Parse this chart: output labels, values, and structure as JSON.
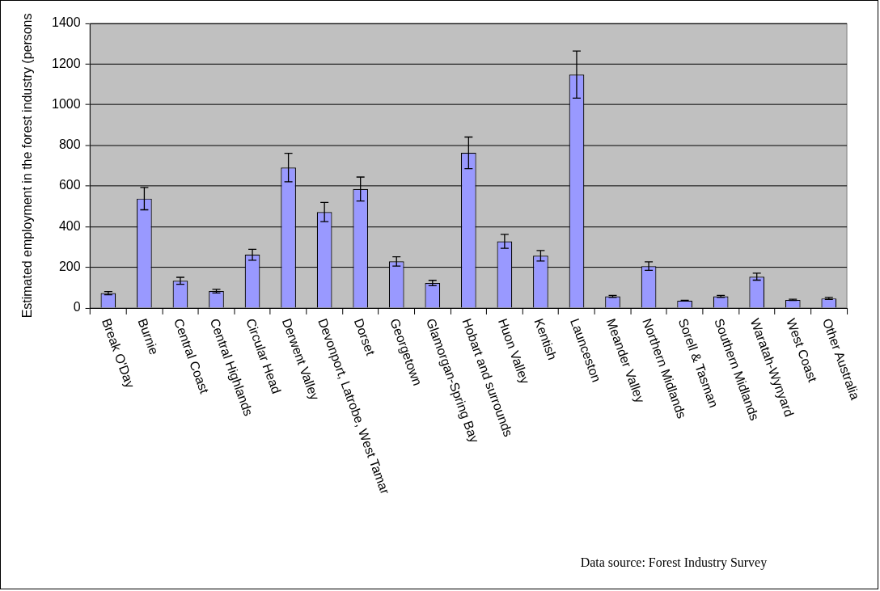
{
  "chart_data": {
    "type": "bar",
    "ylabel": "Estimated employment in the forest industry (persons",
    "categories": [
      "Break O'Day",
      "Burnie",
      "Central Coast",
      "Central Highlands",
      "Circular Head",
      "Derwent Valley",
      "Devonport, Latrobe, West Tamar",
      "Dorset",
      "Georgetown",
      "Glamorgan-Spring Bay",
      "Hobart and surrounds",
      "Huon Valley",
      "Kentish",
      "Launceston",
      "Meander Valley",
      "Northern Midlands",
      "Sorell & Tasman",
      "Southern Midlands",
      "Waratah-Wynyard",
      "West Coast",
      "Other Australia"
    ],
    "values": [
      73,
      538,
      134,
      83,
      262,
      691,
      472,
      585,
      229,
      123,
      763,
      328,
      257,
      1148,
      57,
      206,
      36,
      57,
      154,
      40,
      47
    ],
    "errors": [
      8,
      55,
      17,
      9,
      27,
      70,
      47,
      59,
      23,
      13,
      78,
      34,
      26,
      116,
      5,
      21,
      2,
      5,
      17,
      3,
      5
    ],
    "color": "#9999ff",
    "ylim": [
      0,
      1400
    ],
    "yticks": [
      0,
      200,
      400,
      600,
      800,
      1000,
      1200,
      1400
    ],
    "grid": "y",
    "legend": false,
    "annotations": [
      "Data source: Forest Industry Survey"
    ]
  }
}
